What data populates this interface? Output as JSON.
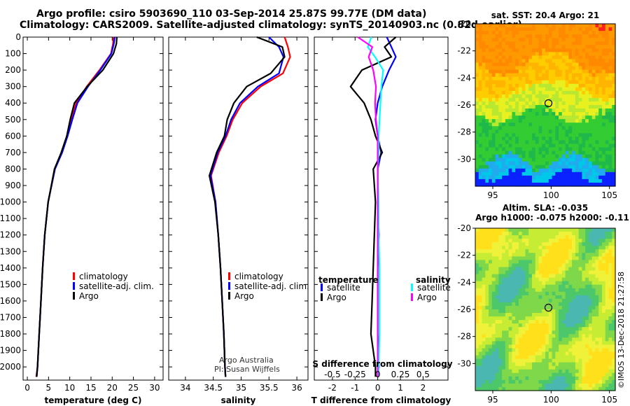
{
  "header": {
    "line1": "Argo profile: csiro 5903690_110 03-Sep-2014 25.87S 99.77E (DM data)",
    "line2": "Climatology: CARS2009. Satellite-adjusted climatology: synTS_20140903.nc (0.82d earlier)"
  },
  "colors": {
    "climatology": "#ff0000",
    "satellite": "#0000ff",
    "argo": "#000000",
    "sat_salinity": "#00ffff",
    "argo_salinity": "#ff00ff"
  },
  "chart_data": [
    {
      "type": "line",
      "panel": "temperature",
      "xlabel": "temperature (deg C)",
      "ylabel": "",
      "xlim": [
        -1,
        32
      ],
      "ylim": [
        2080,
        0
      ],
      "xticks": [
        0,
        5,
        10,
        15,
        20,
        25,
        30
      ],
      "yticks": [
        0,
        100,
        200,
        300,
        400,
        500,
        600,
        700,
        800,
        900,
        1000,
        1100,
        1200,
        1300,
        1400,
        1500,
        1600,
        1700,
        1800,
        1900,
        2000
      ],
      "legend": [
        "climatology",
        "satellite-adj. clim.",
        "Argo"
      ],
      "series": [
        {
          "name": "climatology",
          "color": "#ff0000",
          "x": [
            20.3,
            20.2,
            19.7,
            17,
            14,
            11.5,
            10.4,
            9.4,
            8.1,
            6.5,
            4.9,
            4.1,
            3.6,
            3.2,
            2.8,
            2.4,
            2.1
          ],
          "y": [
            0,
            40,
            100,
            200,
            300,
            400,
            500,
            600,
            700,
            800,
            1000,
            1200,
            1400,
            1600,
            1800,
            2000,
            2060
          ]
        },
        {
          "name": "satellite-adj. clim.",
          "color": "#0000ff",
          "x": [
            20.6,
            20.4,
            19.8,
            17.2,
            14.3,
            11.8,
            10.6,
            9.5,
            8.2,
            6.5,
            4.9,
            4.1,
            3.6,
            3.2,
            2.8,
            2.4,
            2.2
          ],
          "y": [
            0,
            40,
            100,
            200,
            300,
            400,
            500,
            600,
            700,
            800,
            1000,
            1200,
            1400,
            1600,
            1800,
            2000,
            2060
          ]
        },
        {
          "name": "Argo",
          "color": "#000000",
          "x": [
            21.1,
            21,
            20.3,
            17.8,
            14.1,
            11.1,
            10.1,
            9.3,
            8,
            6.4,
            4.9,
            4.1,
            3.6,
            3.2,
            2.8,
            2.4,
            2.2
          ],
          "y": [
            0,
            40,
            100,
            200,
            300,
            400,
            500,
            600,
            700,
            800,
            1000,
            1200,
            1400,
            1600,
            1800,
            2000,
            2060
          ]
        }
      ]
    },
    {
      "type": "line",
      "panel": "salinity",
      "xlabel": "salinity",
      "xlim": [
        33.7,
        36.2
      ],
      "ylim": [
        2080,
        0
      ],
      "xticks": [
        34,
        34.5,
        35,
        35.5,
        36
      ],
      "xticklabels": [
        "34",
        "34.5",
        "35",
        "35.5",
        "36"
      ],
      "legend": [
        "climatology",
        "satellite-adj. clim.",
        "Argo"
      ],
      "annotations": [
        "Argo Australia",
        "PI: Susan Wijffels"
      ],
      "series": [
        {
          "name": "climatology",
          "color": "#ff0000",
          "x": [
            35.78,
            35.84,
            35.88,
            35.75,
            35.35,
            35.02,
            34.85,
            34.74,
            34.6,
            34.46,
            34.54,
            34.59,
            34.63,
            34.66,
            34.69,
            34.71,
            34.72
          ],
          "y": [
            0,
            60,
            120,
            220,
            300,
            400,
            500,
            600,
            700,
            840,
            1000,
            1200,
            1400,
            1600,
            1800,
            2000,
            2060
          ]
        },
        {
          "name": "satellite-adj. clim.",
          "color": "#0000ff",
          "x": [
            35.5,
            35.68,
            35.76,
            35.68,
            35.3,
            34.98,
            34.82,
            34.72,
            34.58,
            34.45,
            34.54,
            34.59,
            34.63,
            34.66,
            34.69,
            34.71,
            34.72
          ],
          "y": [
            0,
            60,
            120,
            220,
            300,
            400,
            500,
            600,
            700,
            840,
            1000,
            1200,
            1400,
            1600,
            1800,
            2000,
            2060
          ]
        },
        {
          "name": "Argo",
          "color": "#000000",
          "x": [
            35.28,
            35.74,
            35.78,
            35.53,
            35.1,
            34.87,
            34.75,
            34.7,
            34.56,
            34.43,
            34.53,
            34.59,
            34.63,
            34.66,
            34.69,
            34.71,
            34.72
          ],
          "y": [
            0,
            60,
            120,
            220,
            300,
            400,
            500,
            600,
            700,
            840,
            1000,
            1200,
            1400,
            1600,
            1800,
            2000,
            2060
          ]
        }
      ]
    },
    {
      "type": "line",
      "panel": "differences",
      "xlabel": "T difference from climatology",
      "title_inner": "S difference from climatology",
      "xlim": [
        -2.8,
        3.1
      ],
      "ylim": [
        2080,
        0
      ],
      "xticks": [
        -2,
        -1,
        0,
        1,
        2
      ],
      "s_xticks": [
        -0.5,
        -0.25,
        0,
        0.25,
        0.5
      ],
      "s_xticklabels": [
        "-0.5",
        "-0.25",
        "0",
        "0.25",
        "0.5"
      ],
      "s_scale": 4,
      "legend_left_title": "temperature",
      "legend_right_title": "salinity",
      "legend": [
        "satellite",
        "Argo",
        "satellite",
        "Argo"
      ],
      "series": [
        {
          "name": "T satellite",
          "color": "#0000ff",
          "x": [
            0.4,
            0.6,
            0.8,
            0.5,
            0.2,
            0,
            -0.1,
            0,
            0.15,
            0,
            0,
            0.05,
            0,
            0,
            0,
            0.05,
            0
          ],
          "y": [
            0,
            60,
            120,
            200,
            300,
            400,
            500,
            600,
            700,
            800,
            1000,
            1200,
            1400,
            1600,
            1800,
            2000,
            2060
          ]
        },
        {
          "name": "T Argo",
          "color": "#000000",
          "x": [
            0.8,
            0.3,
            0.6,
            -0.7,
            -1.2,
            -0.6,
            -0.3,
            -0.1,
            0.2,
            -0.2,
            -0.1,
            -0.15,
            -0.2,
            -0.25,
            -0.3,
            -0.1,
            -0.1
          ],
          "y": [
            0,
            60,
            120,
            200,
            300,
            400,
            500,
            600,
            700,
            800,
            1000,
            1200,
            1400,
            1600,
            1800,
            2000,
            2060
          ]
        },
        {
          "name": "S satellite",
          "color": "#00ffff",
          "s": [
            -0.07,
            -0.11,
            -0.03,
            0.06,
            0.04,
            0.03,
            0.02,
            0.01,
            0.01,
            0,
            0.01,
            0.01,
            0.02,
            0.02,
            0.02,
            0.01,
            0.01
          ],
          "y": [
            0,
            60,
            120,
            200,
            300,
            400,
            500,
            600,
            700,
            800,
            1000,
            1200,
            1400,
            1600,
            1800,
            2000,
            2060
          ]
        },
        {
          "name": "S Argo",
          "color": "#ff00ff",
          "s": [
            -0.22,
            -0.06,
            -0.1,
            -0.05,
            -0.02,
            -0.03,
            -0.02,
            0,
            0,
            0,
            0,
            0,
            0,
            0,
            0,
            0,
            0
          ],
          "y": [
            0,
            60,
            120,
            200,
            300,
            400,
            500,
            600,
            700,
            800,
            1000,
            1200,
            1400,
            1600,
            1800,
            2000,
            2060
          ]
        }
      ]
    },
    {
      "type": "heatmap",
      "panel": "sst-map",
      "title": "sat. SST: 20.4  Argo: 21",
      "xlim": [
        93.5,
        105.5
      ],
      "ylim": [
        -32,
        -20
      ],
      "xticks": [
        95,
        100,
        105
      ],
      "yticks": [
        -20,
        -22,
        -24,
        -26,
        -28,
        -30
      ],
      "marker": {
        "lon": 99.77,
        "lat": -25.87
      }
    },
    {
      "type": "heatmap",
      "panel": "sla-map",
      "title": "Altim. SLA: -0.035",
      "subtitle": "Argo h1000: -0.075 h2000: -0.11",
      "xlim": [
        93.5,
        105.5
      ],
      "ylim": [
        -32,
        -20
      ],
      "xticks": [
        95,
        100,
        105
      ],
      "yticks": [
        -20,
        -22,
        -24,
        -26,
        -28,
        -30
      ],
      "marker": {
        "lon": 99.77,
        "lat": -25.87
      },
      "side_label": "©IMOS 13-Dec-2018 21:27:58"
    }
  ]
}
